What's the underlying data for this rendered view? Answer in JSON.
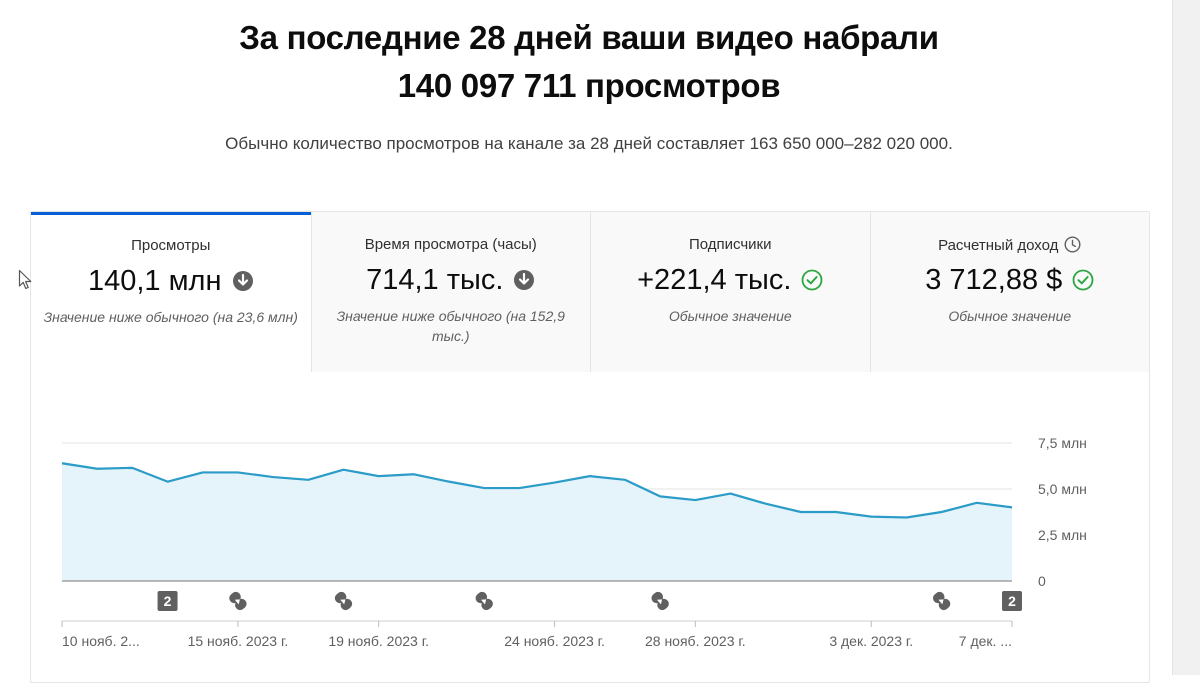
{
  "header": {
    "headline_line1": "За последние 28 дней ваши видео набрали",
    "headline_line2": "140 097 711 просмотров",
    "subline": "Обычно количество просмотров на канале за 28 дней составляет 163 650 000–282 020 000."
  },
  "cards": [
    {
      "title": "Просмотры",
      "value": "140,1 млн",
      "status_icon": "arrow-down-circle-icon",
      "note": "Значение ниже обычного (на 23,6 млн)"
    },
    {
      "title": "Время просмотра (часы)",
      "value": "714,1 тыс.",
      "status_icon": "arrow-down-circle-icon",
      "note": "Значение ниже обычного (на 152,9 тыс.)"
    },
    {
      "title": "Подписчики",
      "value": "+221,4 тыс.",
      "status_icon": "check-circle-icon",
      "note": "Обычное значение"
    },
    {
      "title": "Расчетный доход",
      "title_icon": "clock-icon",
      "value": "3 712,88 $",
      "status_icon": "check-circle-icon",
      "note": "Обычное значение"
    }
  ],
  "colors": {
    "accent": "#065fd4",
    "line": "#2b9bc7",
    "area": "#e5f4fa",
    "check": "#2ba640",
    "down": "#606060",
    "marker": "#606060"
  },
  "chart_data": {
    "type": "area",
    "series": [
      {
        "values": [
          6.4,
          6.1,
          6.15,
          5.4,
          5.9,
          5.9,
          5.65,
          5.5,
          6.05,
          5.7,
          5.8,
          5.4,
          5.05,
          5.05,
          5.35,
          5.7,
          5.5,
          4.6,
          4.4,
          4.75,
          4.2,
          3.75,
          3.75,
          3.5,
          3.45,
          3.75,
          4.25,
          4.0
        ]
      }
    ],
    "ylim": [
      0,
      7.5
    ],
    "y_ticks": [
      {
        "value": 7.5,
        "label": "7,5 млн"
      },
      {
        "value": 5.0,
        "label": "5,0 млн"
      },
      {
        "value": 2.5,
        "label": "2,5 млн"
      },
      {
        "value": 0,
        "label": "0"
      }
    ],
    "x_ticks": [
      {
        "index": 0,
        "label": "10 нояб. 2..."
      },
      {
        "index": 5,
        "label": "15 нояб. 2023 г."
      },
      {
        "index": 9,
        "label": "19 нояб. 2023 г."
      },
      {
        "index": 14,
        "label": "24 нояб. 2023 г."
      },
      {
        "index": 18,
        "label": "28 нояб. 2023 г."
      },
      {
        "index": 23,
        "label": "3 дек. 2023 г."
      },
      {
        "index": 27,
        "label": "7 дек. ..."
      }
    ],
    "markers": [
      {
        "index": 3,
        "kind": "count",
        "label": "2"
      },
      {
        "index": 5,
        "kind": "shorts"
      },
      {
        "index": 8,
        "kind": "shorts"
      },
      {
        "index": 12,
        "kind": "shorts"
      },
      {
        "index": 17,
        "kind": "shorts"
      },
      {
        "index": 25,
        "kind": "shorts"
      },
      {
        "index": 27,
        "kind": "count",
        "label": "2"
      }
    ],
    "grid": true,
    "y_axis_position": "right"
  }
}
